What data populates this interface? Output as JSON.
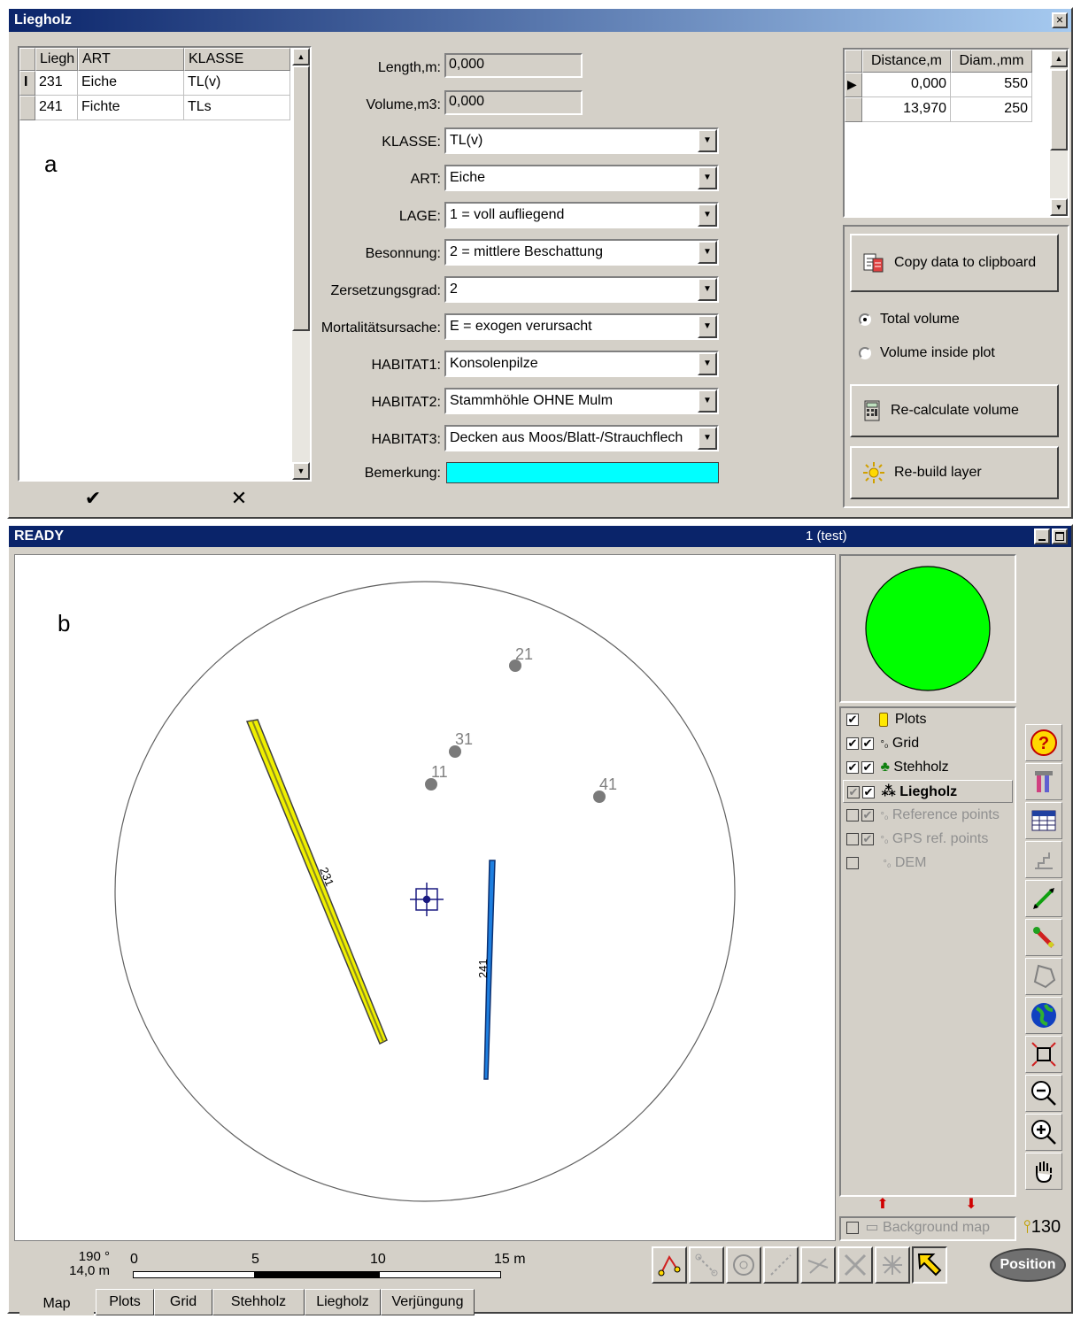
{
  "panel_a": {
    "label": "a",
    "title": "Liegholz",
    "close_glyph": "×",
    "table": {
      "headers": [
        "Liegh",
        "ART",
        "KLASSE"
      ],
      "rows": [
        {
          "id": "231",
          "art": "Eiche",
          "klasse": "TL(v)",
          "marker": "I"
        },
        {
          "id": "241",
          "art": "Fichte",
          "klasse": "TLs",
          "marker": ""
        }
      ]
    },
    "ok_glyph": "✔",
    "cancel_glyph": "✕",
    "form": {
      "length_label": "Length,m:",
      "length_value": "0,000",
      "volume_label": "Volume,m3:",
      "volume_value": "0,000",
      "klasse_label": "KLASSE:",
      "klasse_value": "TL(v)",
      "art_label": "ART:",
      "art_value": "Eiche",
      "lage_label": "LAGE:",
      "lage_value": "1 = voll aufliegend",
      "besonnung_label": "Besonnung:",
      "besonnung_value": "2 = mittlere Beschattung",
      "zersetzung_label": "Zersetzungsgrad:",
      "zersetzung_value": "2",
      "mortalitaet_label": "Mortalitätsursache:",
      "mortalitaet_value": "E = exogen verursacht",
      "habitat1_label": "HABITAT1:",
      "habitat1_value": "Konsolenpilze",
      "habitat2_label": "HABITAT2:",
      "habitat2_value": "Stammhöhle OHNE Mulm",
      "habitat3_label": "HABITAT3:",
      "habitat3_value": "Decken aus Moos/Blatt-/Strauchflech",
      "bemerkung_label": "Bemerkung:",
      "bemerkung_value": "",
      "bemerkung_color": "#00ffff"
    },
    "diam_table": {
      "headers": [
        "Distance,m",
        "Diam.,mm"
      ],
      "rows": [
        {
          "distance": "0,000",
          "diam": "550"
        },
        {
          "distance": "13,970",
          "diam": "250"
        }
      ]
    },
    "buttons": {
      "copy": "Copy data to clipboard",
      "recalc": "Re-calculate volume",
      "rebuild": "Re-build layer"
    },
    "radio": {
      "total": "Total volume",
      "inside": "Volume inside plot",
      "selected": "total"
    }
  },
  "panel_b": {
    "label": "b",
    "status": "READY",
    "plot_info": "1 (test)",
    "trees": [
      {
        "label": "21"
      },
      {
        "label": "31"
      },
      {
        "label": "11"
      },
      {
        "label": "41"
      }
    ],
    "logs": [
      {
        "label": "231",
        "color": "#f0f000"
      },
      {
        "label": "241",
        "color": "#1e7fe0"
      }
    ],
    "overview_color": "#00ff00",
    "layers": [
      {
        "name": "Plots",
        "state": "active"
      },
      {
        "name": "Grid",
        "state": "active"
      },
      {
        "name": "Stehholz",
        "state": "active"
      },
      {
        "name": "Liegholz",
        "state": "selected"
      },
      {
        "name": "Reference points",
        "state": "disabled"
      },
      {
        "name": "GPS ref. points",
        "state": "disabled"
      },
      {
        "name": "DEM",
        "state": "disabled"
      }
    ],
    "background_map": "Background map",
    "zoom_value": "130",
    "scale": {
      "angle": "190 °",
      "distance": "14,0 m",
      "ticks": [
        "0",
        "5",
        "10",
        "15 m"
      ]
    },
    "position_button": "Position",
    "tabs": [
      "Map",
      "Plots",
      "Grid",
      "Stehholz",
      "Liegholz",
      "Verjüngung"
    ],
    "active_tab": "Map",
    "colors": {
      "titlebar": "#0a246a",
      "titlebar_end": "#a6caf0"
    }
  }
}
